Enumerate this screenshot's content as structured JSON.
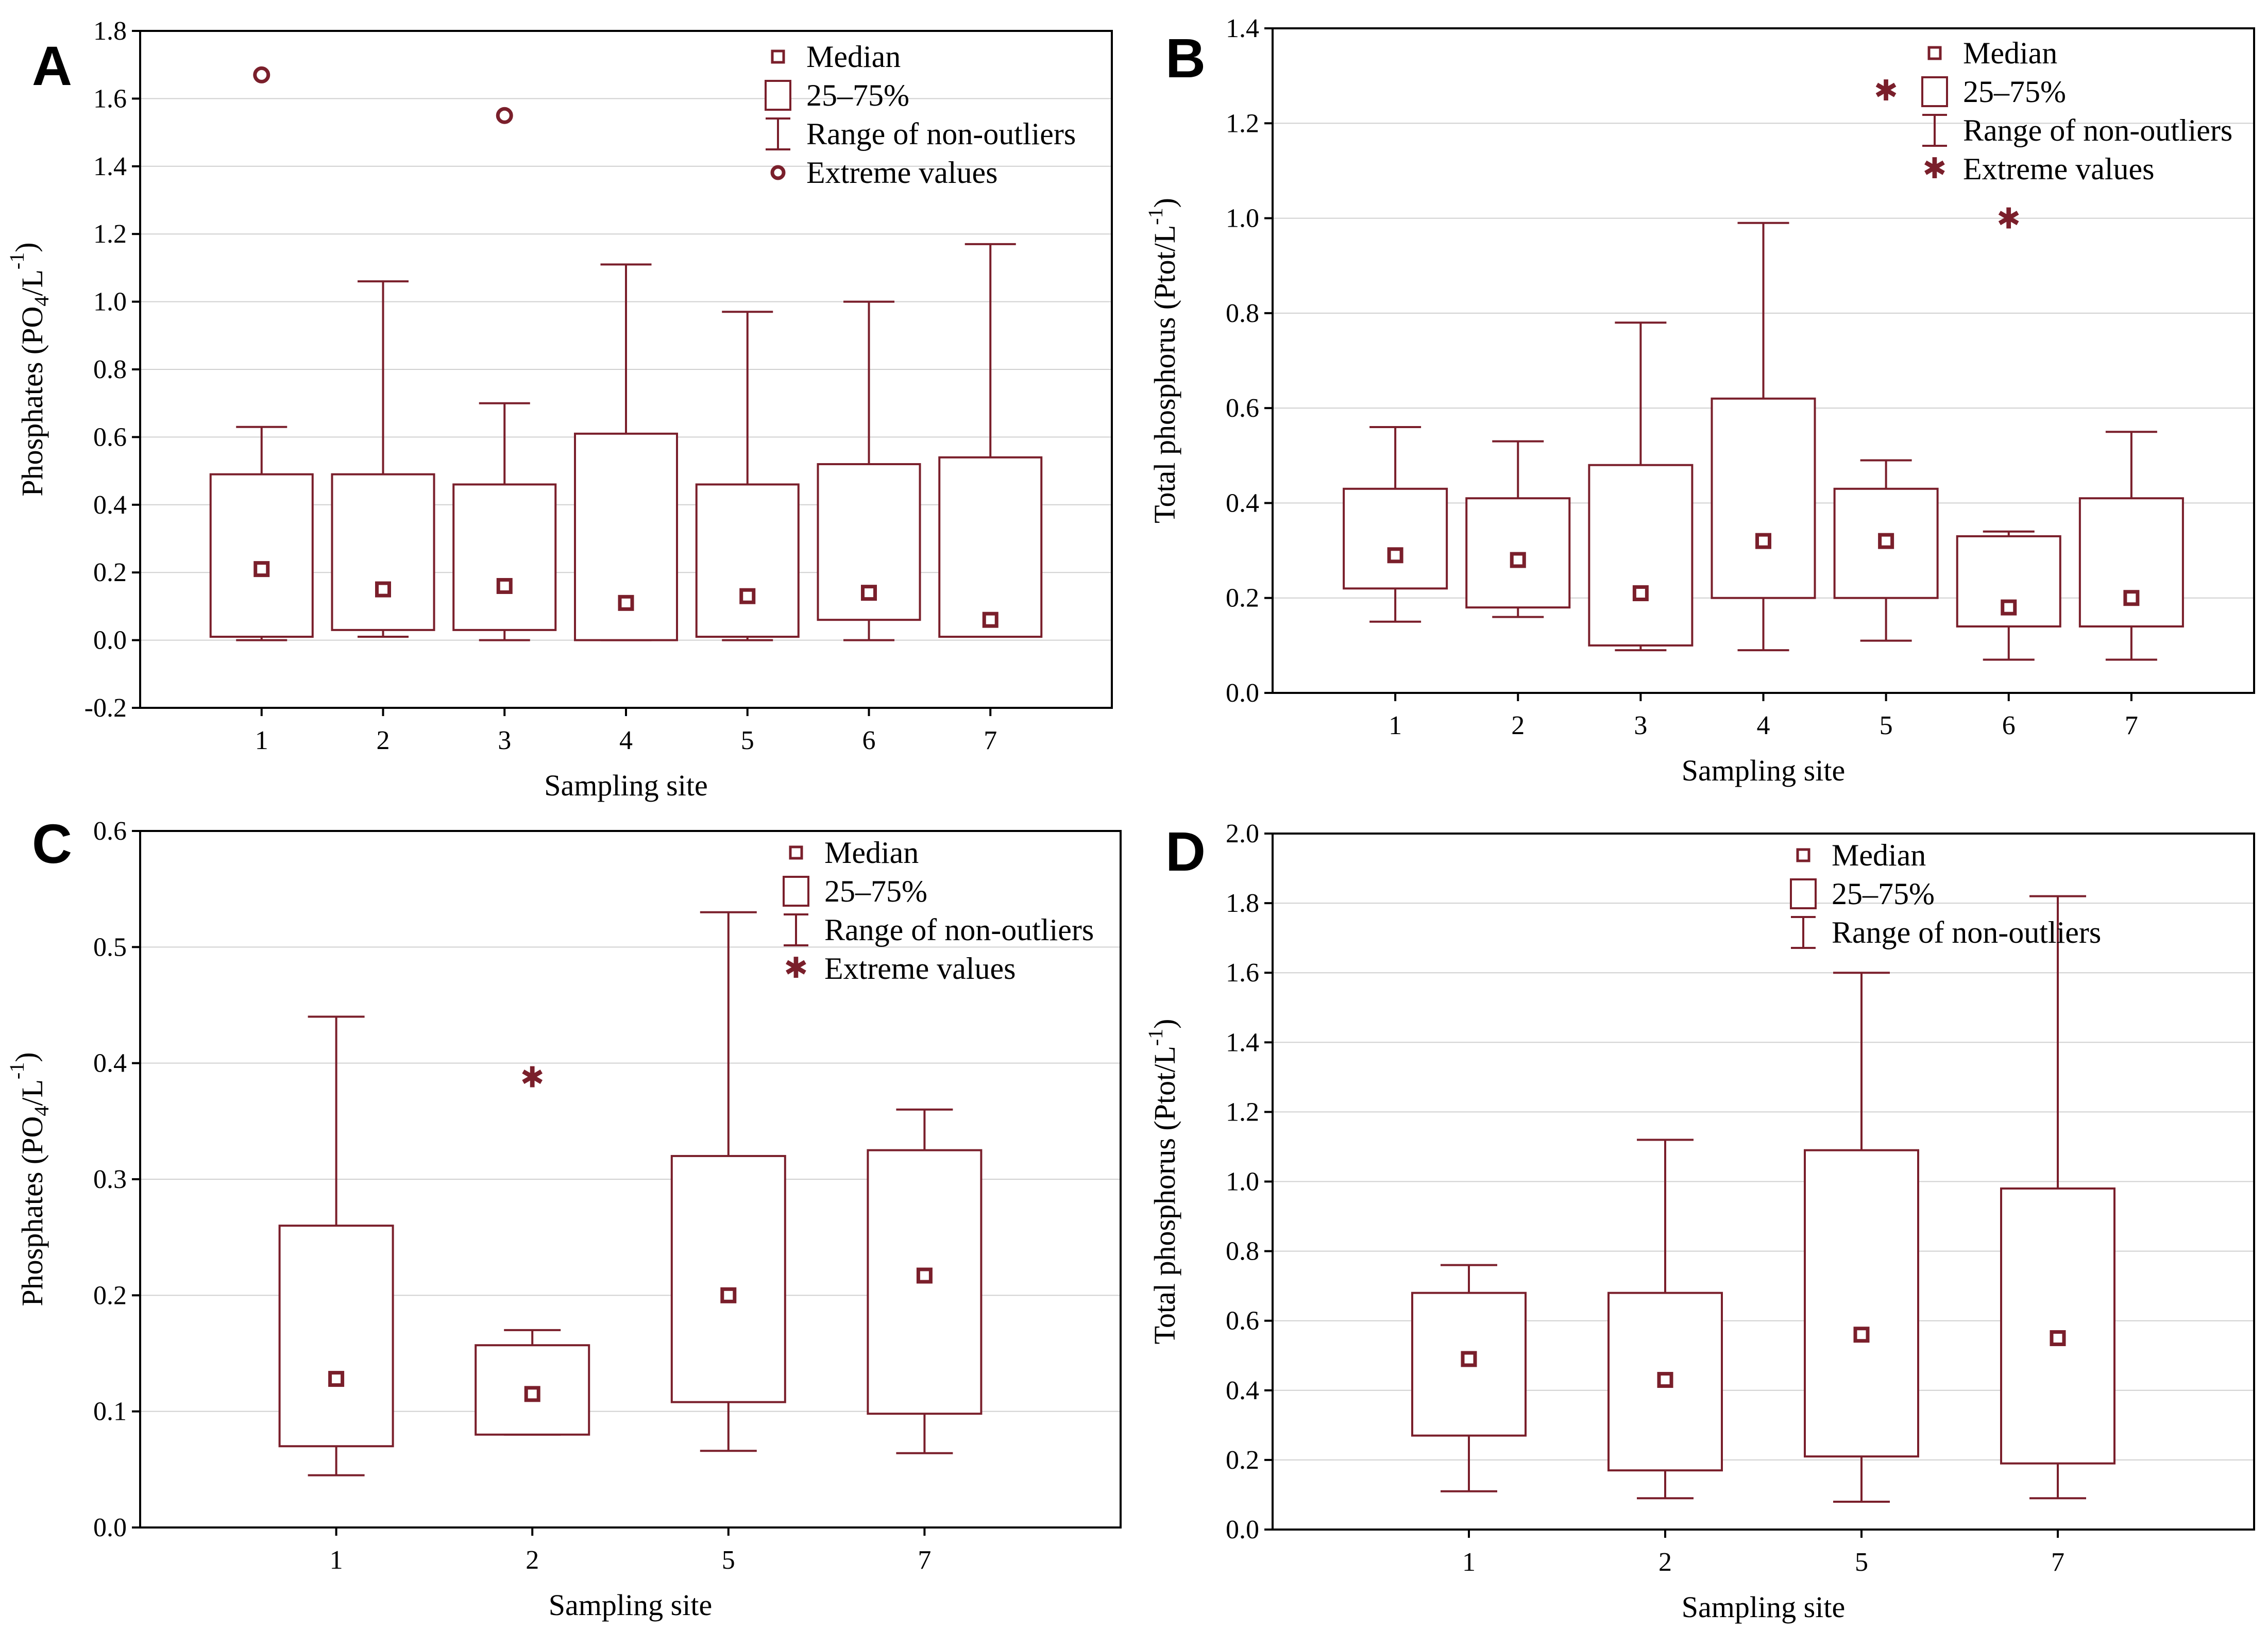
{
  "colors": {
    "box": "#7a1f2b",
    "axis": "#000000",
    "grid": "#d0d0d0"
  },
  "chart_data": [
    {
      "type": "box",
      "panel": "A",
      "xlabel": "Sampling site",
      "ylabel_main": "Phosphates (PO",
      "ylabel_sub": "4",
      "ylabel_mid": "/L",
      "ylabel_sup": "-1",
      "ylabel_end": ")",
      "ylim": [
        -0.2,
        1.8
      ],
      "yticks": [
        -0.2,
        0.0,
        0.2,
        0.4,
        0.6,
        0.8,
        1.0,
        1.2,
        1.4,
        1.6,
        1.8
      ],
      "ytick_labels": [
        "-0.2",
        "0.0",
        "0.2",
        "0.4",
        "0.6",
        "0.8",
        "1.0",
        "1.2",
        "1.4",
        "1.6",
        "1.8"
      ],
      "extreme_marker": "circle",
      "legend": [
        "Median",
        "25–75%",
        "Range of non-outliers",
        "Extreme values"
      ],
      "categories": [
        "1",
        "2",
        "3",
        "4",
        "5",
        "6",
        "7"
      ],
      "boxes": [
        {
          "min": 0.0,
          "q1": 0.01,
          "median": 0.21,
          "q3": 0.49,
          "max": 0.63,
          "extremes": [
            1.67
          ]
        },
        {
          "min": 0.01,
          "q1": 0.03,
          "median": 0.15,
          "q3": 0.49,
          "max": 1.06,
          "extremes": []
        },
        {
          "min": 0.0,
          "q1": 0.03,
          "median": 0.16,
          "q3": 0.46,
          "max": 0.7,
          "extremes": [
            1.55
          ]
        },
        {
          "min": 0.0,
          "q1": 0.0,
          "median": 0.11,
          "q3": 0.61,
          "max": 1.11,
          "extremes": []
        },
        {
          "min": 0.0,
          "q1": 0.01,
          "median": 0.13,
          "q3": 0.46,
          "max": 0.97,
          "extremes": []
        },
        {
          "min": 0.0,
          "q1": 0.06,
          "median": 0.14,
          "q3": 0.52,
          "max": 1.0,
          "extremes": []
        },
        {
          "min": 0.01,
          "q1": 0.01,
          "median": 0.06,
          "q3": 0.54,
          "max": 1.17,
          "extremes": []
        }
      ]
    },
    {
      "type": "box",
      "panel": "B",
      "xlabel": "Sampling site",
      "ylabel_main": "Total phosphorus (Ptot/L",
      "ylabel_sub": "",
      "ylabel_mid": "",
      "ylabel_sup": "-1",
      "ylabel_end": ")",
      "ylim": [
        0.0,
        1.4
      ],
      "yticks": [
        0.0,
        0.2,
        0.4,
        0.6,
        0.8,
        1.0,
        1.2,
        1.4
      ],
      "ytick_labels": [
        "0.0",
        "0.2",
        "0.4",
        "0.6",
        "0.8",
        "1.0",
        "1.2",
        "1.4"
      ],
      "extreme_marker": "star",
      "legend": [
        "Median",
        "25–75%",
        "Range of non-outliers",
        "Extreme values"
      ],
      "categories": [
        "1",
        "2",
        "3",
        "4",
        "5",
        "6",
        "7"
      ],
      "boxes": [
        {
          "min": 0.15,
          "q1": 0.22,
          "median": 0.29,
          "q3": 0.43,
          "max": 0.56,
          "extremes": []
        },
        {
          "min": 0.16,
          "q1": 0.18,
          "median": 0.28,
          "q3": 0.41,
          "max": 0.53,
          "extremes": []
        },
        {
          "min": 0.09,
          "q1": 0.1,
          "median": 0.21,
          "q3": 0.48,
          "max": 0.78,
          "extremes": []
        },
        {
          "min": 0.09,
          "q1": 0.2,
          "median": 0.32,
          "q3": 0.62,
          "max": 0.99,
          "extremes": []
        },
        {
          "min": 0.11,
          "q1": 0.2,
          "median": 0.32,
          "q3": 0.43,
          "max": 0.49,
          "extremes": [
            1.27
          ]
        },
        {
          "min": 0.07,
          "q1": 0.14,
          "median": 0.18,
          "q3": 0.33,
          "max": 0.34,
          "extremes": [
            1.0
          ]
        },
        {
          "min": 0.07,
          "q1": 0.14,
          "median": 0.2,
          "q3": 0.41,
          "max": 0.55,
          "extremes": []
        }
      ]
    },
    {
      "type": "box",
      "panel": "C",
      "xlabel": "Sampling site",
      "ylabel_main": "Phosphates (PO",
      "ylabel_sub": "4",
      "ylabel_mid": "/L",
      "ylabel_sup": "-1",
      "ylabel_end": ")",
      "ylim": [
        0.0,
        0.6
      ],
      "yticks": [
        0.0,
        0.1,
        0.2,
        0.3,
        0.4,
        0.5,
        0.6
      ],
      "ytick_labels": [
        "0.0",
        "0.1",
        "0.2",
        "0.3",
        "0.4",
        "0.5",
        "0.6"
      ],
      "extreme_marker": "star",
      "legend": [
        "Median",
        "25–75%",
        "Range of non-outliers",
        "Extreme values"
      ],
      "categories": [
        "1",
        "2",
        "5",
        "7"
      ],
      "boxes": [
        {
          "min": 0.045,
          "q1": 0.07,
          "median": 0.128,
          "q3": 0.26,
          "max": 0.44,
          "extremes": []
        },
        {
          "min": 0.08,
          "q1": 0.08,
          "median": 0.115,
          "q3": 0.157,
          "max": 0.17,
          "extremes": [
            0.388
          ]
        },
        {
          "min": 0.066,
          "q1": 0.108,
          "median": 0.2,
          "q3": 0.32,
          "max": 0.53,
          "extremes": []
        },
        {
          "min": 0.064,
          "q1": 0.098,
          "median": 0.217,
          "q3": 0.325,
          "max": 0.36,
          "extremes": []
        }
      ]
    },
    {
      "type": "box",
      "panel": "D",
      "xlabel": "Sampling site",
      "ylabel_main": "Total phosphorus (Ptot/L",
      "ylabel_sub": "",
      "ylabel_mid": "",
      "ylabel_sup": "-1",
      "ylabel_end": ")",
      "ylim": [
        0.0,
        2.0
      ],
      "yticks": [
        0.0,
        0.2,
        0.4,
        0.6,
        0.8,
        1.0,
        1.2,
        1.4,
        1.6,
        1.8,
        2.0
      ],
      "ytick_labels": [
        "0.0",
        "0.2",
        "0.4",
        "0.6",
        "0.8",
        "1.0",
        "1.2",
        "1.4",
        "1.6",
        "1.8",
        "2.0"
      ],
      "extreme_marker": "none",
      "legend": [
        "Median",
        "25–75%",
        "Range of non-outliers"
      ],
      "categories": [
        "1",
        "2",
        "5",
        "7"
      ],
      "boxes": [
        {
          "min": 0.11,
          "q1": 0.27,
          "median": 0.49,
          "q3": 0.68,
          "max": 0.76,
          "extremes": []
        },
        {
          "min": 0.09,
          "q1": 0.17,
          "median": 0.43,
          "q3": 0.68,
          "max": 1.12,
          "extremes": []
        },
        {
          "min": 0.08,
          "q1": 0.21,
          "median": 0.56,
          "q3": 1.09,
          "max": 1.6,
          "extremes": []
        },
        {
          "min": 0.09,
          "q1": 0.19,
          "median": 0.55,
          "q3": 0.98,
          "max": 1.82,
          "extremes": []
        }
      ]
    }
  ]
}
